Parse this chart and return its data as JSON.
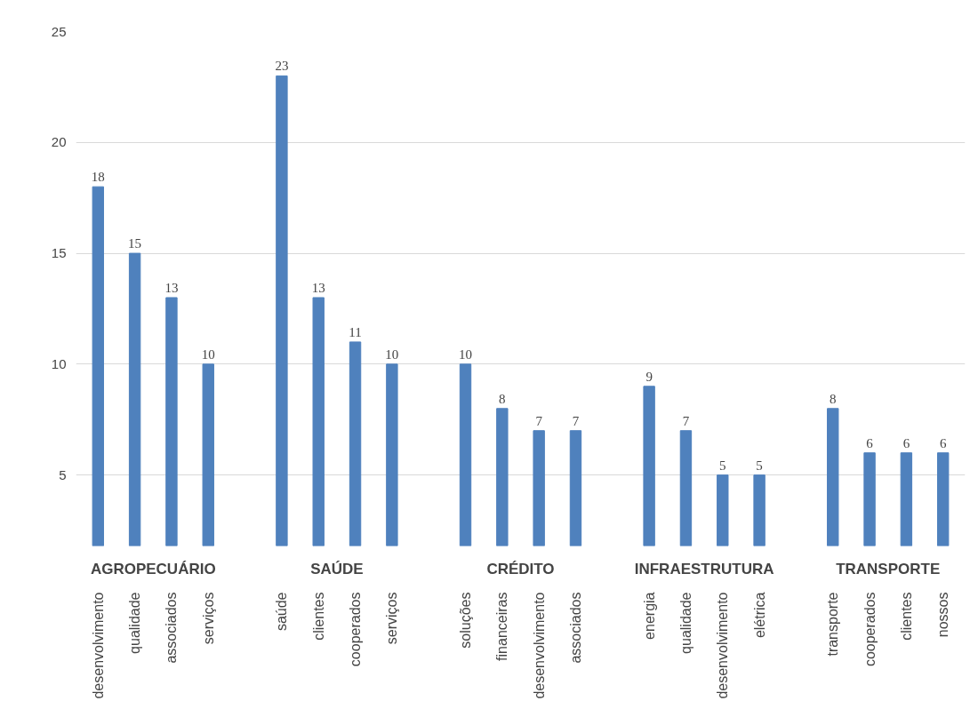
{
  "chart_data": {
    "type": "bar",
    "categories": [
      "desenvolvimento",
      "qualidade",
      "associados",
      "serviços",
      null,
      "saúde",
      "clientes",
      "cooperados",
      "serviços",
      null,
      "soluções",
      "financeiras",
      "desenvolvimento",
      "associados",
      null,
      "energia",
      "qualidade",
      "desenvolvimento",
      "elétrica",
      null,
      "transporte",
      "cooperados",
      "clientes",
      "nossos"
    ],
    "values": [
      18,
      15,
      13,
      10,
      null,
      23,
      13,
      11,
      10,
      null,
      10,
      8,
      7,
      7,
      null,
      9,
      7,
      5,
      5,
      null,
      8,
      6,
      6,
      6
    ],
    "color": "#4f81bd",
    "annotations": [
      "AGROPECUÁRIO",
      "SAÚDE",
      "CRÉDITO",
      "INFRAESTRUTURA",
      "TRANSPORTE"
    ],
    "ylim": [
      1.8,
      25
    ],
    "yticks": [
      5,
      10,
      15,
      20,
      25
    ],
    "grid": "y",
    "data_labels": true
  }
}
